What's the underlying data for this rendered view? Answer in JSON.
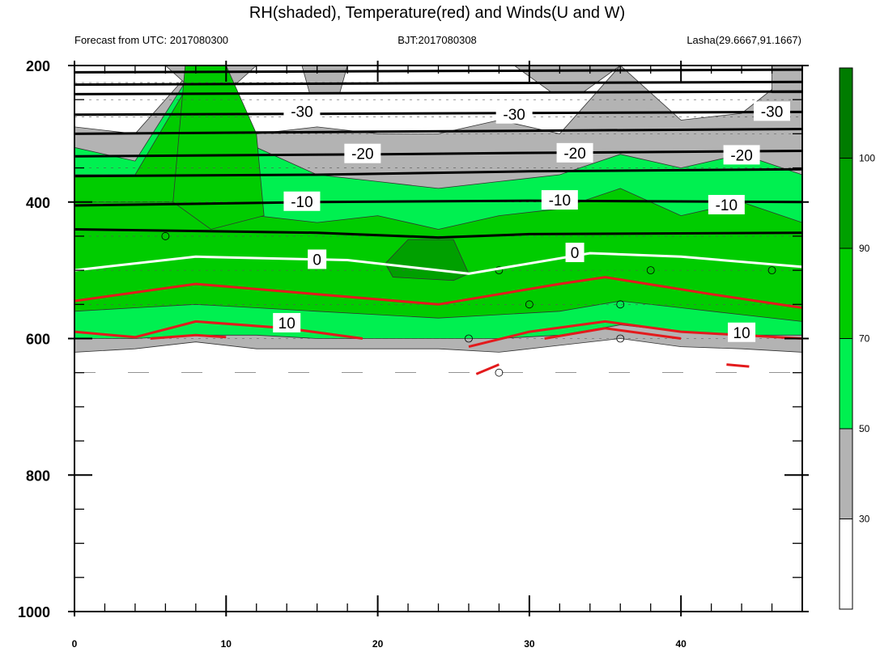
{
  "chart_data": {
    "type": "time-pressure cross section",
    "title": "RH(shaded), Temperature(red) and Winds(U and W)",
    "left_string": "Forecast from UTC: 2017080300",
    "center_string": "BJT:2017080308",
    "right_string": "Lasha(29.6667,91.1667)",
    "x_axis": {
      "range": [
        0,
        48
      ],
      "major_ticks": [
        0,
        10,
        20,
        30,
        40
      ],
      "tick_labels": [
        "0",
        "10",
        "20",
        "30",
        "40"
      ]
    },
    "y_axis": {
      "range": [
        200,
        1000
      ],
      "inverted": true,
      "major_ticks": [
        200,
        400,
        600,
        800,
        1000
      ],
      "tick_labels": [
        "200",
        "400",
        "600",
        "800",
        "1000"
      ]
    },
    "colorbar": {
      "levels": [
        "30",
        "50",
        "70",
        "90",
        "100"
      ],
      "colors": [
        "#ffffff",
        "#b3b3b3",
        "#00f050",
        "#00cc00",
        "#00a000",
        "#007c00"
      ]
    },
    "rh_layers": {
      "note": "RH bands by pressure (hPa) across forecast hours",
      "x": [
        0,
        4,
        8,
        12,
        16,
        20,
        24,
        28,
        32,
        36,
        40,
        44,
        48
      ],
      "ge30_top": [
        290,
        300,
        200,
        300,
        290,
        300,
        300,
        280,
        300,
        200,
        280,
        270,
        200
      ],
      "ge50_top": [
        320,
        340,
        200,
        320,
        360,
        370,
        380,
        370,
        360,
        330,
        350,
        330,
        360
      ],
      "ge70_top": [
        360,
        360,
        210,
        420,
        430,
        420,
        440,
        420,
        410,
        380,
        420,
        400,
        430
      ],
      "ge90_top": [
        400,
        520,
        200,
        520,
        520,
        460,
        450,
        470,
        520,
        510,
        520,
        520,
        520
      ],
      "ge70_bottom": [
        560,
        555,
        550,
        555,
        560,
        565,
        570,
        565,
        560,
        545,
        555,
        565,
        575
      ],
      "ge50_bottom": [
        600,
        600,
        595,
        595,
        600,
        600,
        600,
        600,
        595,
        580,
        590,
        595,
        595
      ],
      "ge30_bottom": [
        620,
        615,
        605,
        615,
        615,
        615,
        615,
        620,
        610,
        600,
        612,
        615,
        620
      ]
    },
    "temperature_contours": [
      {
        "label": "-30",
        "values": [
          -30,
          -30,
          -30,
          -30
        ]
      },
      {
        "label": "-20",
        "values": [
          -20,
          -20,
          -20,
          -20
        ]
      },
      {
        "label": "-10",
        "values": [
          -10,
          -10,
          -10,
          -10
        ]
      },
      {
        "label": "0",
        "values": [
          0,
          0,
          0,
          0
        ]
      },
      {
        "label": "10",
        "values": [
          10,
          10,
          10,
          10
        ]
      }
    ]
  }
}
